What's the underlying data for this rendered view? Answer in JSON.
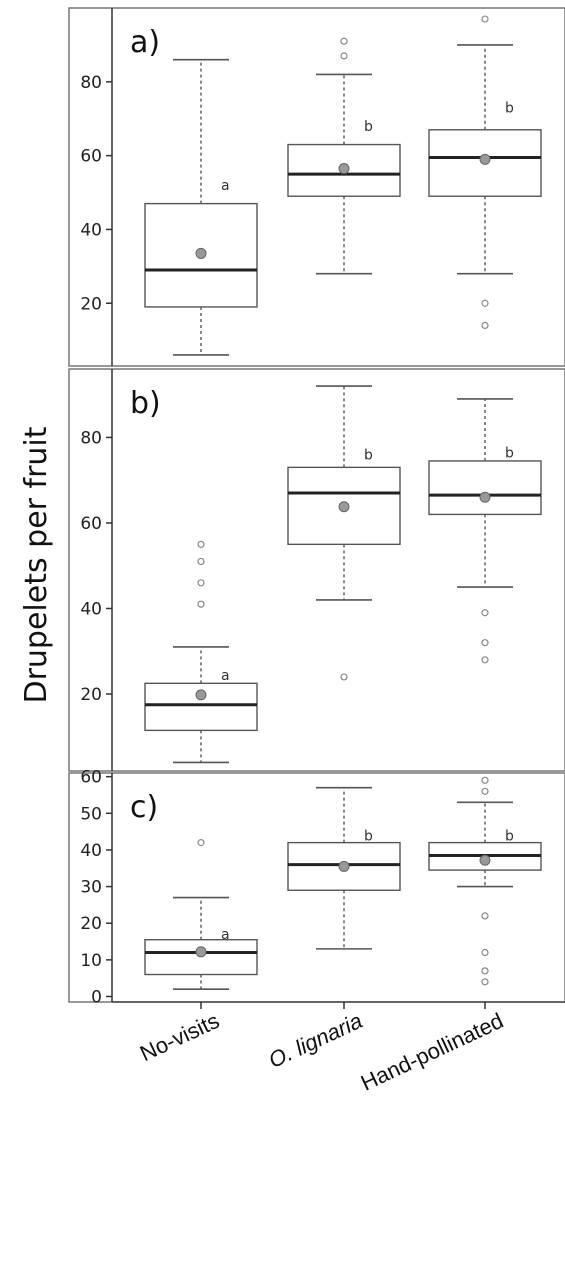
{
  "chart_data": {
    "type": "box",
    "ylabel": "Drupelets per fruit",
    "categories": [
      "No-visits",
      "O. lignaria",
      "Hand-pollinated"
    ],
    "italic_categories": [
      false,
      true,
      false
    ],
    "colors": {
      "box_fill": "#ffffff",
      "box_stroke": "#555555",
      "median": "#222222",
      "mean_dot": "#999999",
      "outlier": "#888888"
    },
    "panels": [
      {
        "label": "a)",
        "ylim": [
          3,
          100
        ],
        "yticks": [
          20,
          40,
          60,
          80
        ],
        "boxes": [
          {
            "category": "No-visits",
            "whisker_low": 6,
            "q1": 19,
            "median": 29,
            "q3": 47,
            "whisker_high": 86,
            "mean": 33.5,
            "outliers": [],
            "letter": "a",
            "letter_y": 52
          },
          {
            "category": "O. lignaria",
            "whisker_low": 28,
            "q1": 49,
            "median": 55,
            "q3": 63,
            "whisker_high": 82,
            "mean": 56.5,
            "outliers": [
              87,
              91
            ],
            "letter": "b",
            "letter_y": 68
          },
          {
            "category": "Hand-pollinated",
            "whisker_low": 28,
            "q1": 49,
            "median": 59.5,
            "q3": 67,
            "whisker_high": 90,
            "mean": 59,
            "outliers": [
              20,
              14,
              97
            ],
            "letter": "b",
            "letter_y": 73
          }
        ]
      },
      {
        "label": "b)",
        "ylim": [
          2,
          96
        ],
        "yticks": [
          20,
          40,
          60,
          80
        ],
        "boxes": [
          {
            "category": "No-visits",
            "whisker_low": 4,
            "q1": 11.5,
            "median": 17.5,
            "q3": 22.5,
            "whisker_high": 31,
            "mean": 19.8,
            "outliers": [
              41,
              46,
              51,
              55
            ],
            "letter": "a",
            "letter_y": 24.5
          },
          {
            "category": "O. lignaria",
            "whisker_low": 42,
            "q1": 55,
            "median": 67,
            "q3": 73,
            "whisker_high": 92,
            "mean": 63.8,
            "outliers": [
              24
            ],
            "letter": "b",
            "letter_y": 76
          },
          {
            "category": "Hand-pollinated",
            "whisker_low": 45,
            "q1": 62,
            "median": 66.5,
            "q3": 74.5,
            "whisker_high": 89,
            "mean": 66,
            "outliers": [
              39,
              32,
              28
            ],
            "letter": "b",
            "letter_y": 76.5
          }
        ]
      },
      {
        "label": "c)",
        "ylim": [
          -1.5,
          61
        ],
        "yticks": [
          0,
          10,
          20,
          30,
          40,
          50,
          60
        ],
        "boxes": [
          {
            "category": "No-visits",
            "whisker_low": 2,
            "q1": 6,
            "median": 12,
            "q3": 15.5,
            "whisker_high": 27,
            "mean": 12.2,
            "outliers": [
              42
            ],
            "letter": "a",
            "letter_y": 17
          },
          {
            "category": "O. lignaria",
            "whisker_low": 13,
            "q1": 29,
            "median": 36,
            "q3": 42,
            "whisker_high": 57,
            "mean": 35.5,
            "outliers": [],
            "letter": "b",
            "letter_y": 44
          },
          {
            "category": "Hand-pollinated",
            "whisker_low": 30,
            "q1": 34.5,
            "median": 38.5,
            "q3": 42,
            "whisker_high": 53,
            "mean": 37.2,
            "outliers": [
              22,
              12,
              7,
              4,
              56,
              59
            ],
            "letter": "b",
            "letter_y": 44
          }
        ]
      }
    ]
  }
}
